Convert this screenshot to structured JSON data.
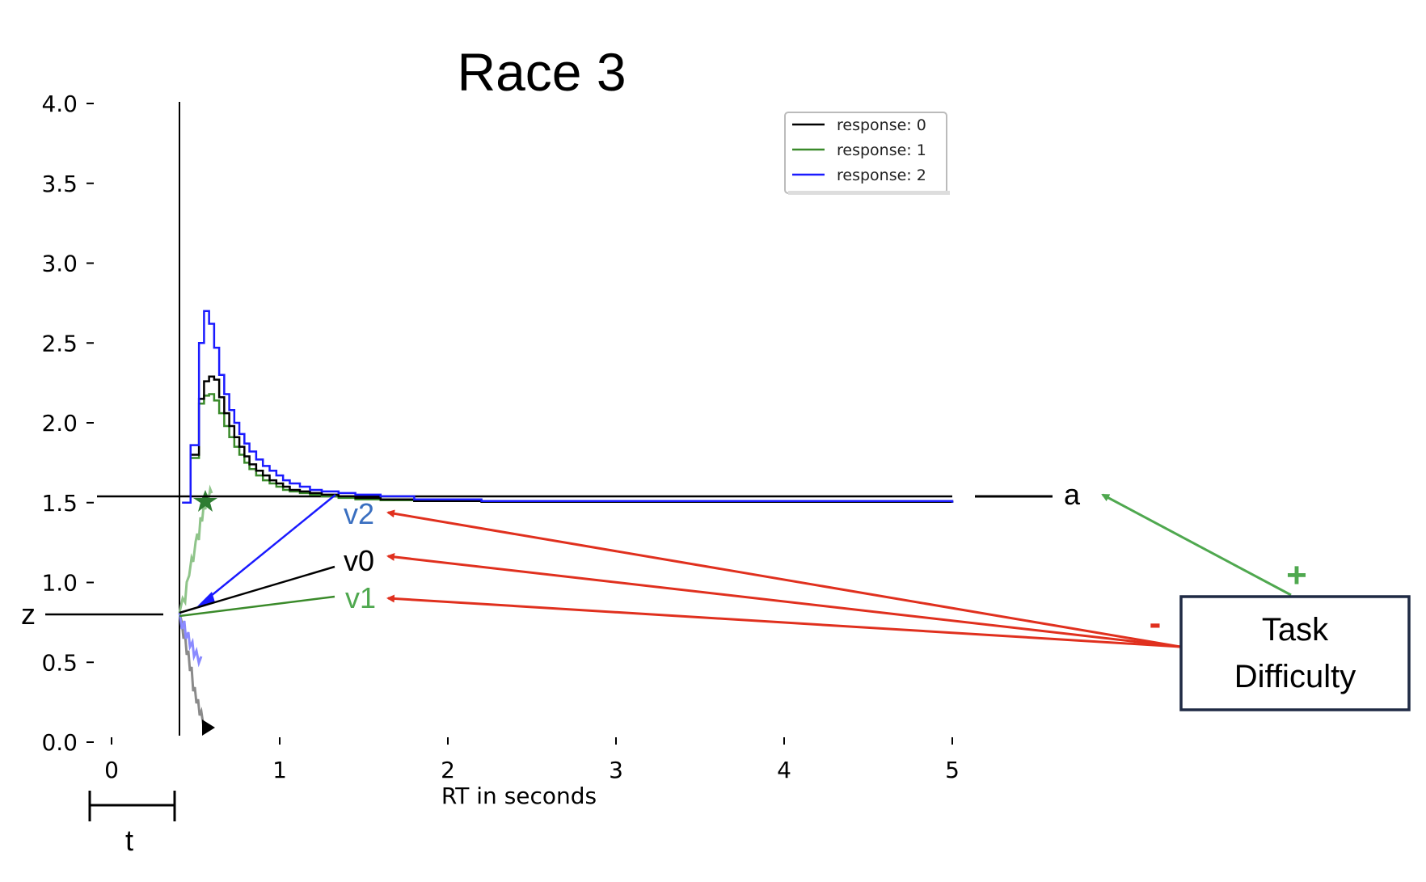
{
  "title": "Race 3",
  "chart_data": {
    "type": "line",
    "xlabel": "RT in seconds",
    "ylabel": "",
    "xlim": [
      -0.1,
      5
    ],
    "ylim": [
      0,
      4
    ],
    "x_ticks": [
      "0",
      "1",
      "2",
      "3",
      "4",
      "5"
    ],
    "y_ticks": [
      "0.0",
      "0.5",
      "1.0",
      "1.5",
      "2.0",
      "2.5",
      "3.0",
      "3.5",
      "4.0"
    ],
    "boundary_a": 1.5,
    "start_point_z": 0.75,
    "nondecision_t": 0.42,
    "legend": {
      "placement": "top-right",
      "entries": [
        {
          "label": "response: 0",
          "color": "#000000"
        },
        {
          "label": "response: 1",
          "color": "#3a8a2a"
        },
        {
          "label": "response: 2",
          "color": "#1a1aff"
        }
      ]
    },
    "series": [
      {
        "name": "response: 0",
        "color": "#000000",
        "x": [
          0.42,
          0.47,
          0.52,
          0.55,
          0.58,
          0.61,
          0.64,
          0.67,
          0.7,
          0.73,
          0.76,
          0.79,
          0.82,
          0.86,
          0.9,
          0.94,
          0.98,
          1.02,
          1.06,
          1.12,
          1.18,
          1.25,
          1.35,
          1.45,
          1.6,
          1.8,
          2.2,
          5.0
        ],
        "y": [
          1.5,
          1.8,
          2.15,
          2.26,
          2.29,
          2.27,
          2.16,
          2.06,
          1.98,
          1.91,
          1.85,
          1.79,
          1.74,
          1.7,
          1.67,
          1.64,
          1.62,
          1.6,
          1.58,
          1.57,
          1.56,
          1.55,
          1.54,
          1.53,
          1.52,
          1.51,
          1.505,
          1.5
        ]
      },
      {
        "name": "response: 1",
        "color": "#3a8a2a",
        "x": [
          0.42,
          0.47,
          0.52,
          0.55,
          0.58,
          0.61,
          0.64,
          0.67,
          0.7,
          0.73,
          0.76,
          0.79,
          0.82,
          0.86,
          0.9,
          0.94,
          0.98,
          1.02,
          1.06,
          1.12,
          1.18,
          1.25,
          1.35,
          1.45,
          1.6,
          1.8,
          2.2,
          5.0
        ],
        "y": [
          1.5,
          1.78,
          2.12,
          2.17,
          2.18,
          2.14,
          2.06,
          1.98,
          1.91,
          1.85,
          1.8,
          1.75,
          1.71,
          1.67,
          1.64,
          1.62,
          1.6,
          1.58,
          1.57,
          1.56,
          1.55,
          1.54,
          1.53,
          1.52,
          1.515,
          1.51,
          1.505,
          1.5
        ]
      },
      {
        "name": "response: 2",
        "color": "#1a1aff",
        "x": [
          0.42,
          0.47,
          0.52,
          0.55,
          0.58,
          0.61,
          0.64,
          0.67,
          0.7,
          0.73,
          0.76,
          0.79,
          0.82,
          0.86,
          0.9,
          0.94,
          0.98,
          1.02,
          1.06,
          1.12,
          1.18,
          1.25,
          1.35,
          1.45,
          1.6,
          1.8,
          2.2,
          5.0
        ],
        "y": [
          1.5,
          1.86,
          2.5,
          2.7,
          2.62,
          2.47,
          2.3,
          2.18,
          2.08,
          2.0,
          1.93,
          1.87,
          1.82,
          1.77,
          1.73,
          1.7,
          1.67,
          1.64,
          1.62,
          1.6,
          1.58,
          1.57,
          1.56,
          1.55,
          1.54,
          1.52,
          1.51,
          1.5
        ]
      }
    ]
  },
  "labels": {
    "a": "a",
    "z": "z",
    "t": "t",
    "v0": "v0",
    "v1": "v1",
    "v2": "v2",
    "plus": "+",
    "minus": "-",
    "task_line1": "Task",
    "task_line2": "Difficulty"
  },
  "colors": {
    "black": "#000000",
    "green": "#3a8a2a",
    "blue": "#1a1aff",
    "v2_label": "#3a6fc0",
    "v1_label": "#4fa84f",
    "arrow_red": "#e0301e",
    "arrow_green": "#4fa84f",
    "box_border": "#1f2a44"
  }
}
